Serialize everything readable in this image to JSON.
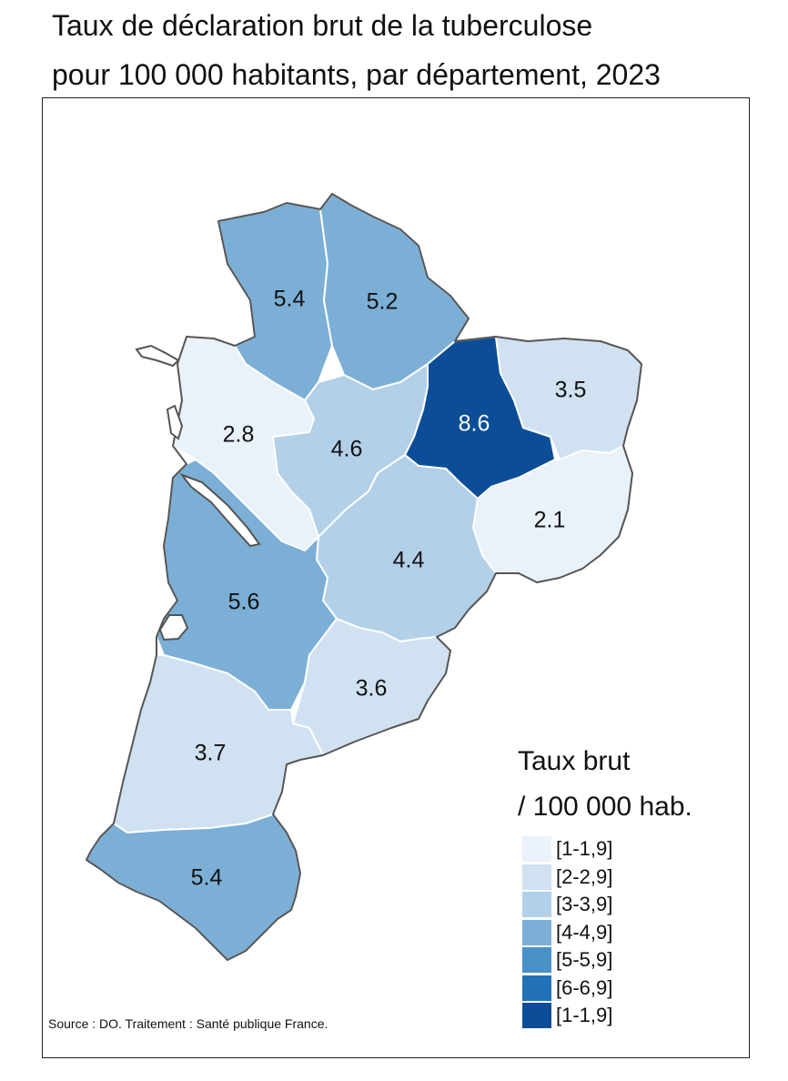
{
  "title": {
    "line1": "Taux de déclaration brut de la tuberculose",
    "line2": "pour 100 000 habitants, par département, 2023"
  },
  "map": {
    "departments": [
      {
        "id": "deux-sevres",
        "value": "5.4",
        "fill": "#7bafd6",
        "text_color": "#111111"
      },
      {
        "id": "vienne",
        "value": "5.2",
        "fill": "#7bafd6",
        "text_color": "#111111"
      },
      {
        "id": "charente-maritime",
        "value": "2.8",
        "fill": "#e9f1f9",
        "text_color": "#111111"
      },
      {
        "id": "charente",
        "value": "4.6",
        "fill": "#b3d0e9",
        "text_color": "#111111"
      },
      {
        "id": "haute-vienne",
        "value": "8.6",
        "fill": "#0b4e97",
        "text_color": "#ffffff"
      },
      {
        "id": "creuse",
        "value": "3.5",
        "fill": "#d0e1f2",
        "text_color": "#111111"
      },
      {
        "id": "correze",
        "value": "2.1",
        "fill": "#e9f1f9",
        "text_color": "#111111"
      },
      {
        "id": "dordogne",
        "value": "4.4",
        "fill": "#b3d0e9",
        "text_color": "#111111"
      },
      {
        "id": "gironde",
        "value": "5.6",
        "fill": "#7bafd6",
        "text_color": "#111111"
      },
      {
        "id": "lot-et-garonne",
        "value": "3.6",
        "fill": "#d0e1f2",
        "text_color": "#111111"
      },
      {
        "id": "landes",
        "value": "3.7",
        "fill": "#d0e1f2",
        "text_color": "#111111"
      },
      {
        "id": "pyrenees-atlantiques",
        "value": "5.4",
        "fill": "#7bafd6",
        "text_color": "#111111"
      }
    ]
  },
  "legend": {
    "title_line1": "Taux brut",
    "title_line2": "/ 100 000 hab.",
    "items": [
      {
        "label": "[1-1,9]",
        "color": "#eaf2fa"
      },
      {
        "label": "[2-2,9]",
        "color": "#d0e1f2"
      },
      {
        "label": "[3-3,9]",
        "color": "#b2d0e8"
      },
      {
        "label": "[4-4,9]",
        "color": "#7bafd6"
      },
      {
        "label": "[5-5,9]",
        "color": "#4a91c8"
      },
      {
        "label": "[6-6,9]",
        "color": "#2371b5"
      },
      {
        "label": "[1-1,9]",
        "color": "#0b4e97"
      }
    ]
  },
  "source": "Source : DO. Traitement : Santé publique France."
}
